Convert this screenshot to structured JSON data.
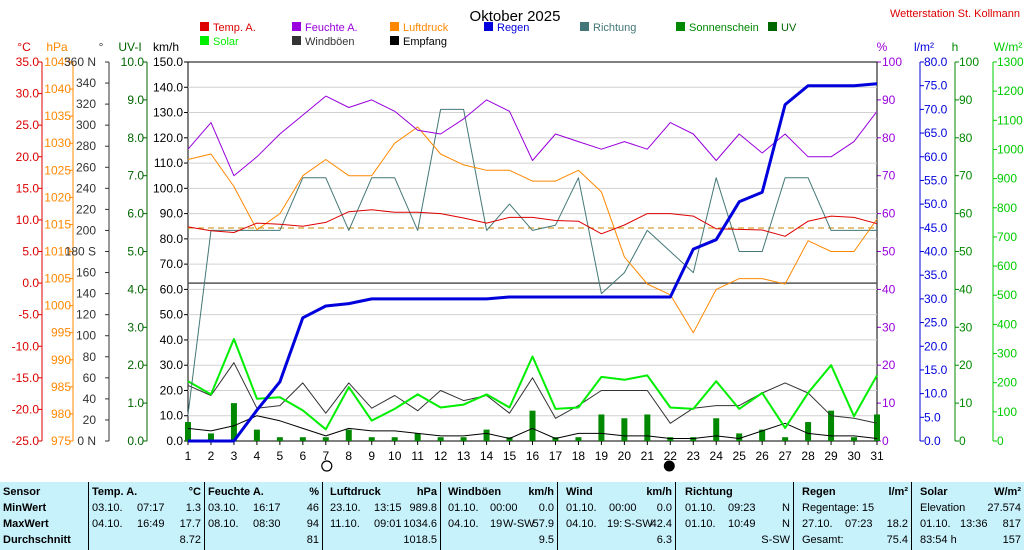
{
  "station": "Wetterstation St. Kollmann",
  "chart_data": {
    "type": "line",
    "title": "Oktober 2025",
    "x": [
      1,
      2,
      3,
      4,
      5,
      6,
      7,
      8,
      9,
      10,
      11,
      12,
      13,
      14,
      15,
      16,
      17,
      18,
      19,
      20,
      21,
      22,
      23,
      24,
      25,
      26,
      27,
      28,
      29,
      30,
      31
    ],
    "xlim": [
      1,
      31
    ],
    "legend": [
      {
        "name": "Temp. A.",
        "color": "#dd0000"
      },
      {
        "name": "Feuchte A.",
        "color": "#9900dd"
      },
      {
        "name": "Luftdruck",
        "color": "#ff8800"
      },
      {
        "name": "Regen",
        "color": "#0000dd"
      },
      {
        "name": "Richtung",
        "color": "#447777"
      },
      {
        "name": "Sonnenschein",
        "color": "#008800"
      },
      {
        "name": "UV",
        "color": "#006600"
      },
      {
        "name": "Solar",
        "color": "#00ee00"
      },
      {
        "name": "Windböen",
        "color": "#333333"
      },
      {
        "name": "Empfang",
        "color": "#000000"
      }
    ],
    "axes": {
      "temp": {
        "label": "°C",
        "color": "#dd0000",
        "range": [
          -25,
          35
        ],
        "step": 5,
        "decimals": 1
      },
      "pressure": {
        "label": "hPa",
        "color": "#ff8800",
        "range": [
          975,
          1045
        ],
        "step": 5,
        "decimals": 0
      },
      "direction": {
        "label": "°",
        "color": "#333333",
        "range": [
          0,
          360
        ],
        "ticks": [
          0,
          20,
          40,
          60,
          80,
          100,
          120,
          140,
          160,
          180,
          200,
          220,
          240,
          260,
          280,
          300,
          320,
          340,
          360
        ],
        "named": {
          "0": "N",
          "180": "S",
          "360": "N"
        }
      },
      "uv": {
        "label": "UV-I",
        "color": "#006600",
        "range": [
          0,
          10
        ],
        "step": 1,
        "decimals": 1
      },
      "wind": {
        "label": "km/h",
        "color": "#000000",
        "range": [
          0,
          150
        ],
        "step": 10,
        "decimals": 1
      },
      "humidity": {
        "label": "%",
        "color": "#9900dd",
        "range": [
          0,
          100
        ],
        "step": 10,
        "decimals": 0
      },
      "rain": {
        "label": "l/m²",
        "color": "#0000dd",
        "range": [
          0,
          80
        ],
        "step": 5,
        "decimals": 1
      },
      "sunhours": {
        "label": "h",
        "color": "#008800",
        "range": [
          0,
          100
        ],
        "step": 10,
        "decimals": 0
      },
      "solar": {
        "label": "W/m²",
        "color": "#00cc00",
        "range": [
          0,
          1300
        ],
        "step": 100,
        "decimals": 0
      }
    },
    "series": [
      {
        "name": "Temp. A.",
        "axis": "temp",
        "color": "#dd0000",
        "width": 1,
        "values": [
          8.9,
          8.3,
          8.0,
          9.5,
          9.3,
          9.0,
          9.6,
          11.3,
          11.6,
          11.2,
          11.2,
          11.0,
          10.3,
          9.5,
          10.4,
          10.4,
          9.9,
          9.8,
          7.8,
          9.2,
          11.0,
          11.0,
          10.6,
          8.6,
          8.5,
          8.4,
          7.4,
          9.8,
          10.6,
          10.4,
          9.4
        ]
      },
      {
        "name": "Feuchte A.",
        "axis": "humidity",
        "color": "#9900dd",
        "width": 1,
        "values": [
          77,
          84,
          70,
          75,
          81,
          86,
          91,
          88,
          90,
          87,
          82,
          81,
          85,
          90,
          87,
          74,
          81,
          79,
          77,
          79,
          77,
          84,
          81,
          74,
          81,
          76,
          81,
          75,
          75,
          79,
          87
        ]
      },
      {
        "name": "Luftdruck",
        "axis": "pressure",
        "color": "#ff8800",
        "width": 1,
        "values": [
          1027,
          1028,
          1022,
          1014,
          1017,
          1024,
          1027,
          1024,
          1024,
          1030,
          1033,
          1028,
          1026,
          1025,
          1025,
          1023,
          1023,
          1025,
          1021,
          1009,
          1004,
          1002,
          995,
          1003,
          1005,
          1005,
          1004,
          1012,
          1010,
          1010,
          1016
        ]
      },
      {
        "name": "Regen",
        "axis": "rain",
        "color": "#0000dd",
        "width": 3,
        "values": [
          0,
          0,
          0,
          6.5,
          12.5,
          26,
          28.5,
          29,
          30,
          30,
          30,
          30,
          30,
          30,
          30.4,
          30.4,
          30.4,
          30.4,
          30.4,
          30.4,
          30.4,
          30.4,
          40.5,
          42.5,
          50.5,
          52.5,
          71,
          75,
          75,
          75,
          75.4
        ]
      },
      {
        "name": "Richtung",
        "axis": "direction",
        "color": "#447777",
        "width": 1,
        "values": [
          25,
          200,
          200,
          200,
          200,
          250,
          250,
          200,
          250,
          250,
          200,
          315,
          315,
          200,
          225,
          200,
          205,
          250,
          140,
          160,
          200,
          180,
          160,
          250,
          180,
          180,
          250,
          250,
          200,
          200,
          200
        ]
      },
      {
        "name": "Solar",
        "axis": "solar",
        "color": "#00ee00",
        "width": 2,
        "values": [
          205,
          160,
          350,
          145,
          150,
          105,
          40,
          185,
          70,
          110,
          160,
          115,
          125,
          160,
          115,
          290,
          110,
          115,
          220,
          210,
          225,
          115,
          110,
          205,
          110,
          165,
          45,
          165,
          260,
          85,
          225
        ]
      },
      {
        "name": "Windböen",
        "axis": "wind",
        "color": "#333333",
        "width": 1,
        "values": [
          22,
          18,
          31,
          13,
          14,
          23,
          11,
          23,
          13,
          18,
          12,
          20,
          16,
          18,
          11,
          25,
          9,
          14,
          20,
          20,
          20,
          7,
          13,
          14,
          14,
          19,
          23,
          19,
          10,
          9,
          7
        ]
      },
      {
        "name": "Wind",
        "axis": "wind",
        "color": "#000000",
        "width": 1,
        "values": [
          5,
          4,
          6,
          10,
          8,
          5,
          2,
          5,
          4,
          4,
          3,
          2,
          2,
          3,
          1,
          5,
          1,
          3,
          3,
          2,
          2,
          1,
          1,
          2,
          1,
          4,
          7,
          3,
          2,
          2,
          1
        ]
      },
      {
        "name": "Sonnenschein",
        "axis": "sunhours",
        "color": "#008800",
        "type": "bar",
        "values": [
          5,
          2,
          10,
          3,
          1,
          1,
          1,
          3,
          1,
          1,
          2,
          1,
          1,
          3,
          1,
          8,
          1,
          1,
          7,
          6,
          7,
          1,
          1,
          6,
          2,
          3,
          1,
          5,
          8,
          1,
          7
        ]
      }
    ],
    "reference_lines": [
      {
        "axis": "temp",
        "value": 0,
        "color": "#555555",
        "style": "solid"
      },
      {
        "axis": "temp",
        "value": 8.72,
        "color": "#cc8800",
        "style": "dashed"
      }
    ],
    "moon": {
      "full_day": 7,
      "new_day": 22
    }
  },
  "stats": {
    "sensor": {
      "head": "Sensor",
      "min": "MinWert",
      "max": "MaxWert",
      "avg": "Durchschnitt"
    },
    "temp": {
      "name": "Temp. A.",
      "unit": "°C",
      "min_date": "03.10.",
      "min_time": "07:17",
      "min_val": "1.3",
      "max_date": "04.10.",
      "max_time": "16:49",
      "max_val": "17.7",
      "avg": "8.72"
    },
    "humidity": {
      "name": "Feuchte A.",
      "unit": "%",
      "min_date": "03.10.",
      "min_time": "16:17",
      "min_val": "46",
      "max_date": "08.10.",
      "max_time": "08:30",
      "max_val": "94",
      "avg": "81"
    },
    "pressure": {
      "name": "Luftdruck",
      "unit": "hPa",
      "min_date": "23.10.",
      "min_time": "13:15",
      "min_val": "989.8",
      "max_date": "11.10.",
      "max_time": "09:01",
      "max_val": "1034.6",
      "avg": "1018.5"
    },
    "gusts": {
      "name": "Windböen",
      "unit": "km/h",
      "min_date": "01.10.",
      "min_time": "00:00",
      "min_val": "0.0",
      "max_date": "04.10.",
      "max_time": "19",
      "max_dir": "W-SW",
      "max_val": "57.9",
      "avg": "9.5"
    },
    "wind": {
      "name": "Wind",
      "unit": "km/h",
      "min_date": "01.10.",
      "min_time": "00:00",
      "min_val": "0.0",
      "max_date": "04.10.",
      "max_time": "19:",
      "max_dir": "S-SW",
      "max_val": "42.4",
      "avg": "6.3"
    },
    "direction": {
      "name": "Richtung",
      "min_date": "01.10.",
      "min_time": "09:23",
      "min_val": "N",
      "max_date": "01.10.",
      "max_time": "10:49",
      "max_val": "N",
      "avg": "S-SW"
    },
    "rain": {
      "name": "Regen",
      "unit": "l/m²",
      "row1": "Regentage: 15",
      "max_date": "27.10.",
      "max_time": "07:23",
      "max_val": "18.2",
      "total_label": "Gesamt:",
      "total": "75.4"
    },
    "solar": {
      "name": "Solar",
      "unit": "W/m²",
      "row1_label": "Elevation",
      "row1_val": "27.574",
      "max_date": "01.10.",
      "max_time": "13:36",
      "max_val": "817",
      "sun_label": "83:54 h",
      "sun_val": "157"
    }
  }
}
